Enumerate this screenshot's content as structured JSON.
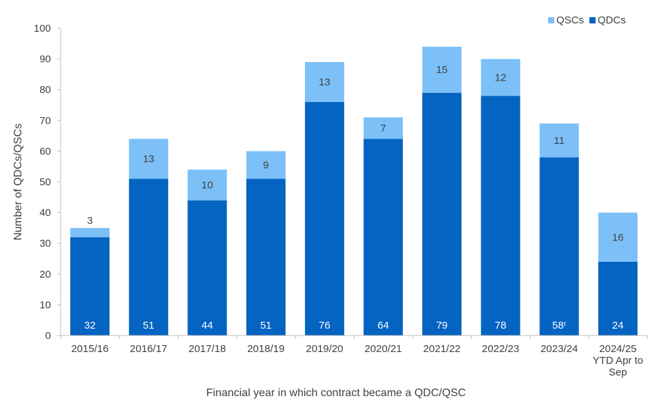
{
  "chart_data": {
    "type": "bar",
    "stacked": true,
    "categories": [
      "2015/16",
      "2016/17",
      "2017/18",
      "2018/19",
      "2019/20",
      "2020/21",
      "2021/22",
      "2022/23",
      "2023/24",
      "2024/25\nYTD Apr to\nSep"
    ],
    "series": [
      {
        "name": "QDCs",
        "color": "#0563C1",
        "values": [
          32,
          51,
          44,
          51,
          76,
          64,
          79,
          78,
          58,
          24
        ],
        "labels": [
          "32",
          "51",
          "44",
          "51",
          "76",
          "64",
          "79",
          "78",
          "58ʳ",
          "24"
        ]
      },
      {
        "name": "QSCs",
        "color": "#7CC0F7",
        "values": [
          3,
          13,
          10,
          9,
          13,
          7,
          15,
          12,
          11,
          16
        ],
        "labels": [
          "3",
          "13",
          "10",
          "9",
          "13",
          "7",
          "15",
          "12",
          "11",
          "16"
        ]
      }
    ],
    "xlabel": "Financial year in which contract became a QDC/QSC",
    "ylabel": "Number of QDCs/QSCs",
    "ylim": [
      0,
      100
    ],
    "yticks": [
      0,
      10,
      20,
      30,
      40,
      50,
      60,
      70,
      80,
      90,
      100
    ],
    "legend": {
      "position": "top-right",
      "order": [
        "QSCs",
        "QDCs"
      ]
    },
    "grid": false
  }
}
